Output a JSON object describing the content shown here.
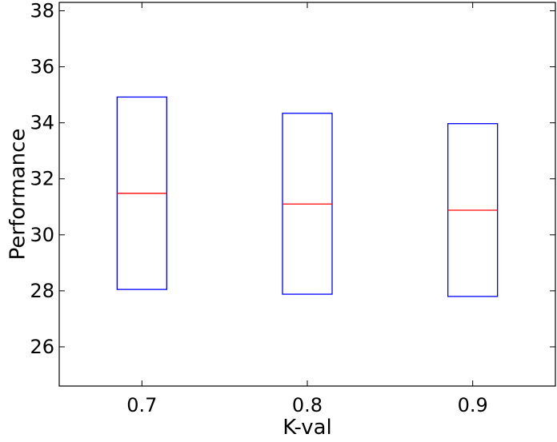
{
  "chart_data": {
    "type": "box",
    "xlabel": "K-val",
    "ylabel": "Performance",
    "ylim": [
      24.6,
      38.3
    ],
    "yticks": [
      26,
      28,
      30,
      32,
      34,
      36,
      38
    ],
    "ytick_labels": [
      "26",
      "28",
      "30",
      "32",
      "34",
      "36",
      "38"
    ],
    "categories": [
      "0.7",
      "0.8",
      "0.9"
    ],
    "boxes": [
      {
        "category": "0.7",
        "q1": 28.05,
        "median": 31.48,
        "q3": 34.92
      },
      {
        "category": "0.8",
        "q1": 27.88,
        "median": 31.1,
        "q3": 34.34
      },
      {
        "category": "0.9",
        "q1": 27.8,
        "median": 30.88,
        "q3": 33.97
      }
    ],
    "colors": {
      "box": "#0000ff",
      "median": "#ff0000",
      "axes": "#000000"
    },
    "grid": false
  }
}
